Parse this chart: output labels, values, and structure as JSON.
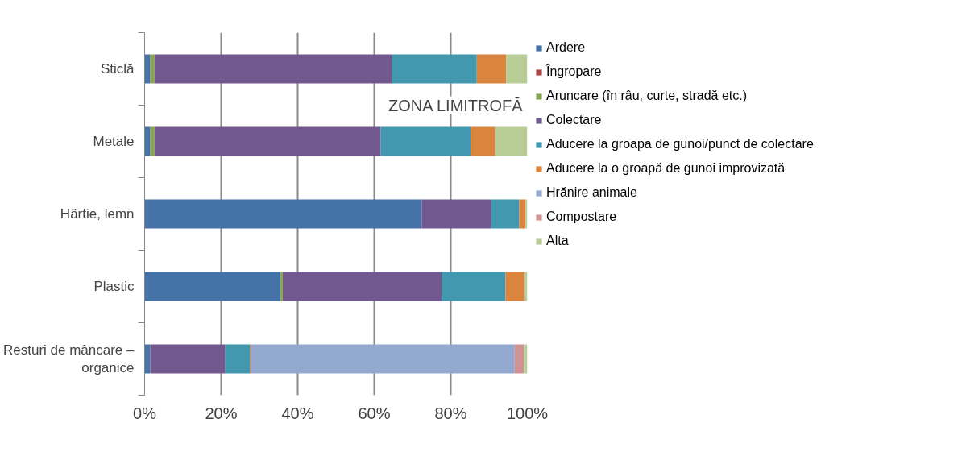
{
  "chart_data": {
    "type": "bar",
    "orientation": "horizontal",
    "stacked": true,
    "title": "ZONA LIMITROFĂ",
    "categories": [
      "Sticlă",
      "Metale",
      "Hârtie, lemn",
      "Plastic",
      "Resturi de mâncare – organice"
    ],
    "series": [
      {
        "name": "Ardere",
        "color": "#4572a7",
        "values": [
          1.5,
          1.5,
          72.4,
          35.5,
          1.5
        ]
      },
      {
        "name": "Îngropare",
        "color": "#aa4643",
        "values": [
          0,
          0,
          0,
          0,
          0
        ]
      },
      {
        "name": "Aruncare (în râu, curte, stradă etc.)",
        "color": "#89a54e",
        "values": [
          1.1,
          1.1,
          0,
          0.6,
          0
        ]
      },
      {
        "name": "Colectare",
        "color": "#71588f",
        "values": [
          62,
          59.1,
          18.2,
          41.5,
          19.6
        ]
      },
      {
        "name": "Aducere la groapa de gunoi/punct de colectare",
        "color": "#4198af",
        "values": [
          22.2,
          23.5,
          7.3,
          16.7,
          6.4
        ]
      },
      {
        "name": "Aducere la o groapă de gunoi improvizată",
        "color": "#db843d",
        "values": [
          7.7,
          6.4,
          1.6,
          4.9,
          0.3
        ]
      },
      {
        "name": "Hrănire animale",
        "color": "#93a9cf",
        "values": [
          0,
          0,
          0,
          0,
          68.9
        ]
      },
      {
        "name": "Compostare",
        "color": "#d19392",
        "values": [
          0,
          0,
          0,
          0,
          2.4
        ]
      },
      {
        "name": "Alta",
        "color": "#b9cd96",
        "values": [
          5.5,
          8.4,
          0.5,
          0.8,
          0.9
        ]
      }
    ],
    "xlim": [
      0,
      100
    ],
    "xticks": [
      {
        "value": 0,
        "label": "0%"
      },
      {
        "value": 20,
        "label": "20%"
      },
      {
        "value": 40,
        "label": "40%"
      },
      {
        "value": 60,
        "label": "60%"
      },
      {
        "value": 80,
        "label": "80%"
      },
      {
        "value": 100,
        "label": "100%"
      }
    ],
    "grid": "x",
    "legend": "right"
  }
}
